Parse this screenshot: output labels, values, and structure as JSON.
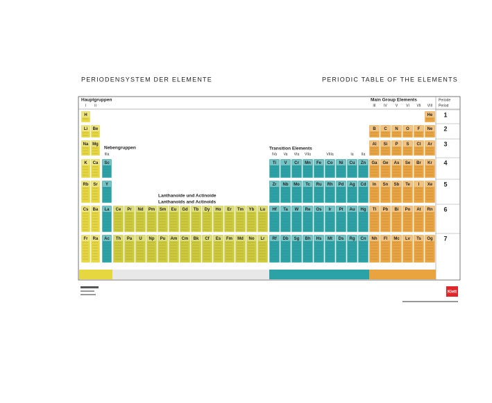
{
  "header": {
    "title_de": "PERIODENSYSTEM DER ELEMENTE",
    "title_en": "PERIODIC TABLE OF THE ELEMENTS"
  },
  "labels": {
    "main_groups_de": "Hauptgruppen",
    "main_groups_en": "Main Group Elements",
    "subgroups_de": "Nebengruppen",
    "transition_en": "Transition Elements",
    "period_de": "Periode",
    "period_en": "Period",
    "f_block_de": "Lanthanoide und Actinoide",
    "f_block_en": "Lanthanoids and Actinoids"
  },
  "group_labels": {
    "s": [
      "I",
      "II"
    ],
    "group3": [
      "IIIa"
    ],
    "d": [
      "IVa",
      "Va",
      "VIa",
      "VIIa",
      null,
      "VIIIa",
      null,
      "Ia",
      "IIa"
    ],
    "p": [
      "III",
      "IV",
      "V",
      "VI",
      "VII",
      "VIII"
    ]
  },
  "periods": [
    1,
    2,
    3,
    4,
    5,
    6,
    7
  ],
  "blocks": {
    "s": {
      "color": "#e6d640",
      "first_period": 1,
      "rows": [
        [
          "H"
        ],
        [
          "Li",
          "Be"
        ],
        [
          "Na",
          "Mg"
        ],
        [
          "K",
          "Ca"
        ],
        [
          "Rb",
          "Sr"
        ],
        [
          "Cs",
          "Ba"
        ],
        [
          "Fr",
          "Ra"
        ]
      ]
    },
    "group3": {
      "color": "#2ba3a6",
      "first_period": 4,
      "rows": [
        [
          "Sc"
        ],
        [
          "Y"
        ],
        [
          "La"
        ],
        [
          "Ac"
        ]
      ]
    },
    "f": {
      "color": "#cdcb3a",
      "first_period": 6,
      "rows": [
        [
          "Ce",
          "Pr",
          "Nd",
          "Pm",
          "Sm",
          "Eu",
          "Gd",
          "Tb",
          "Dy",
          "Ho",
          "Er",
          "Tm",
          "Yb",
          "Lu"
        ],
        [
          "Th",
          "Pa",
          "U",
          "Np",
          "Pu",
          "Am",
          "Cm",
          "Bk",
          "Cf",
          "Es",
          "Fm",
          "Md",
          "No",
          "Lr"
        ]
      ]
    },
    "d": {
      "color": "#2ba3a6",
      "first_period": 4,
      "rows": [
        [
          "Ti",
          "V",
          "Cr",
          "Mn",
          "Fe",
          "Co",
          "Ni",
          "Cu",
          "Zn"
        ],
        [
          "Zr",
          "Nb",
          "Mo",
          "Tc",
          "Ru",
          "Rh",
          "Pd",
          "Ag",
          "Cd"
        ],
        [
          "Hf",
          "Ta",
          "W",
          "Re",
          "Os",
          "Ir",
          "Pt",
          "Au",
          "Hg"
        ],
        [
          "Rf",
          "Db",
          "Sg",
          "Bh",
          "Hs",
          "Mt",
          "Ds",
          "Rg",
          "Cn"
        ]
      ]
    },
    "p": {
      "color": "#e9a440",
      "first_period": 1,
      "rows": [
        [
          null,
          null,
          null,
          null,
          null,
          "He"
        ],
        [
          "B",
          "C",
          "N",
          "O",
          "F",
          "Ne"
        ],
        [
          "Al",
          "Si",
          "P",
          "S",
          "Cl",
          "Ar"
        ],
        [
          "Ga",
          "Ge",
          "As",
          "Se",
          "Br",
          "Kr"
        ],
        [
          "In",
          "Sn",
          "Sb",
          "Te",
          "I",
          "Xe"
        ],
        [
          "Tl",
          "Pb",
          "Bi",
          "Po",
          "At",
          "Rn"
        ],
        [
          "Nh",
          "Fl",
          "Mc",
          "Lv",
          "Ts",
          "Og"
        ]
      ]
    }
  },
  "publisher": "Klett"
}
